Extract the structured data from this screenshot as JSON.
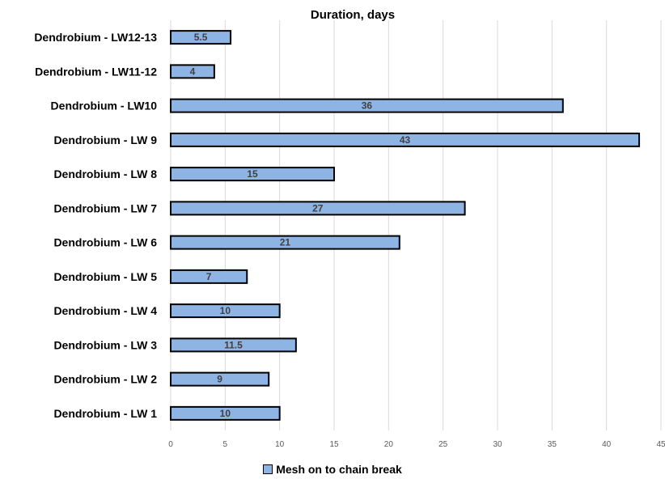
{
  "chart_data": {
    "type": "bar",
    "orientation": "horizontal",
    "title": "Duration, days",
    "categories": [
      "Dendrobium - LW12-13",
      "Dendrobium - LW11-12",
      "Dendrobium - LW10",
      "Dendrobium - LW 9",
      "Dendrobium - LW 8",
      "Dendrobium - LW 7",
      "Dendrobium - LW 6",
      "Dendrobium - LW 5",
      "Dendrobium - LW 4",
      "Dendrobium - LW 3",
      "Dendrobium - LW 2",
      "Dendrobium - LW 1"
    ],
    "series": [
      {
        "name": "Mesh on to chain break",
        "color": "#8eb4e3",
        "values": [
          5.5,
          4,
          36,
          43,
          15,
          27,
          21,
          7,
          10,
          11.5,
          9,
          10
        ],
        "labels": [
          "5.5",
          "4",
          "36",
          "43",
          "15",
          "27",
          "21",
          "7",
          "10",
          "11.5",
          "9",
          "10"
        ]
      }
    ],
    "xlim": [
      0,
      45
    ],
    "xticks": [
      "0",
      "5",
      "10",
      "15",
      "20",
      "25",
      "30",
      "35",
      "40",
      "45"
    ],
    "grid": "vertical",
    "legend_position": "bottom"
  }
}
